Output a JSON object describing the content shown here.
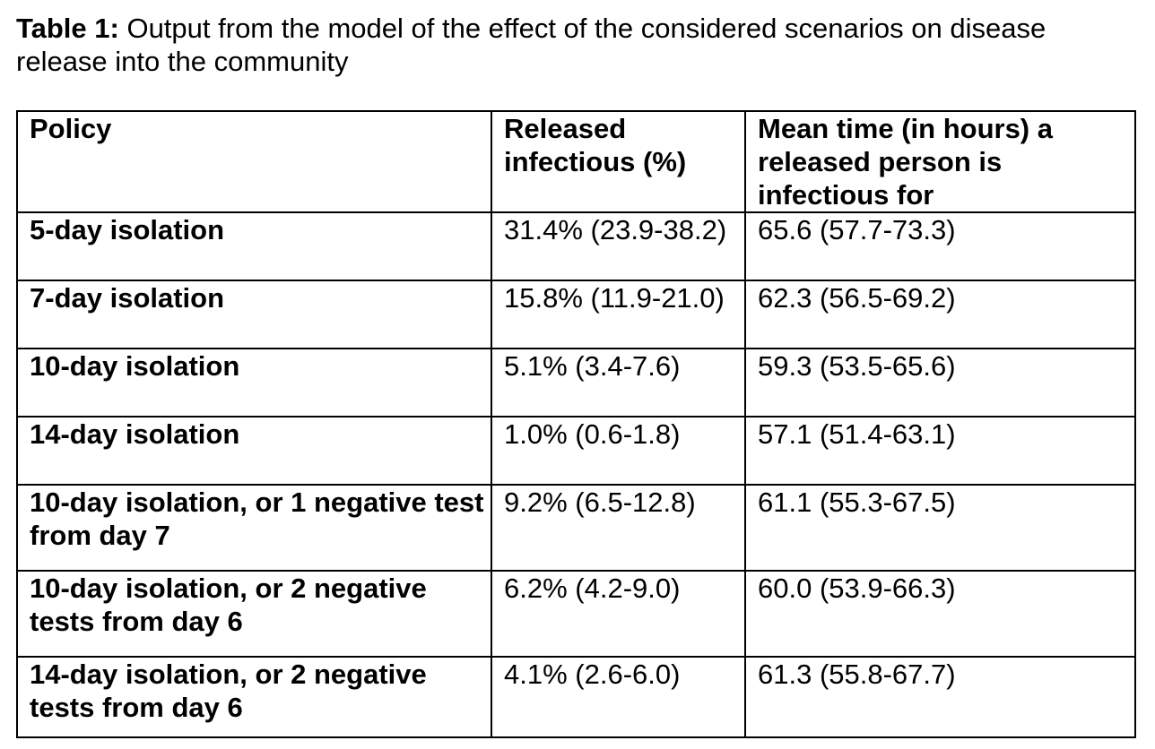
{
  "caption": {
    "label": "Table 1:",
    "text": " Output from the model of the effect of the considered scenarios on disease release into the community"
  },
  "table": {
    "headers": [
      "Policy",
      "Released infectious (%)",
      "Mean time (in hours) a released person is infectious for"
    ],
    "rows": [
      {
        "policy": "5-day isolation",
        "released": "31.4% (23.9-38.2)",
        "mean_time": "65.6 (57.7-73.3)"
      },
      {
        "policy": "7-day isolation",
        "released": "15.8% (11.9-21.0)",
        "mean_time": "62.3 (56.5-69.2)"
      },
      {
        "policy": "10-day isolation",
        "released": "5.1% (3.4-7.6)",
        "mean_time": "59.3 (53.5-65.6)"
      },
      {
        "policy": "14-day isolation",
        "released": "1.0% (0.6-1.8)",
        "mean_time": "57.1 (51.4-63.1)"
      },
      {
        "policy": "10-day isolation, or 1 negative test from day 7",
        "released": "9.2% (6.5-12.8)",
        "mean_time": "61.1 (55.3-67.5)"
      },
      {
        "policy": "10-day isolation, or 2 negative tests from day 6",
        "released": "6.2% (4.2-9.0)",
        "mean_time": "60.0 (53.9-66.3)"
      },
      {
        "policy": "14-day isolation, or 2 negative tests from day 6",
        "released": "4.1% (2.6-6.0)",
        "mean_time": "61.3 (55.8-67.7)"
      }
    ]
  }
}
